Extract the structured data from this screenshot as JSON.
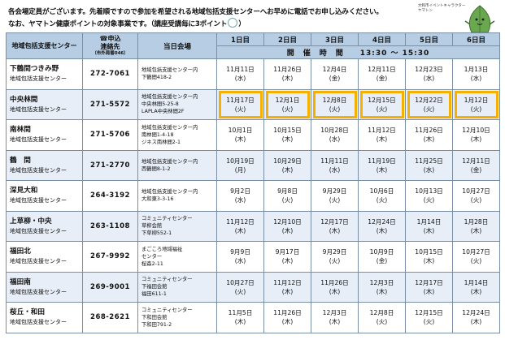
{
  "notice": {
    "line1": "各会場定員がございます。先着順ですので参加を希望される地域包括支援センターへお早めに電話でお申し込みください。",
    "line2": "なお、ヤマトン健康ポイントの対象事業です。（講座受講毎に3ポイント",
    "line2_end": "）"
  },
  "mascot": {
    "caption": "大和市イベントキャラクター ヤマトン"
  },
  "header": {
    "center_col": "地域包括支援センター",
    "contact_line1": "☎申込",
    "contact_line2": "連絡先",
    "contact_note": "（市外局番046）",
    "venue_col": "当日会場",
    "days": [
      "1日目",
      "2日目",
      "3日目",
      "4日目",
      "5日目",
      "6日目"
    ],
    "time_label": "開　催　時　間　　13:30 ～ 15:30"
  },
  "rows": [
    {
      "name": "下鶴間つきみ野",
      "sub": "地域包括支援センター",
      "tel": "272-7061",
      "venue": [
        "地域包括支援センター内",
        "下鶴間418-2"
      ],
      "dates": [
        [
          "11月11日",
          "(水)"
        ],
        [
          "11月26日",
          "(木)"
        ],
        [
          "12月4日",
          "(金)"
        ],
        [
          "12月11日",
          "(金)"
        ],
        [
          "12月23日",
          "(水)"
        ],
        [
          "1月13日",
          "(水)"
        ]
      ]
    },
    {
      "name": "中央林間",
      "sub": "地域包括支援センター",
      "tel": "271-5572",
      "venue": [
        "地域包括支援センター内",
        "中央林間5-25-8",
        "LAPLA中央林間2F"
      ],
      "dates": [
        [
          "11月17日",
          "(火)"
        ],
        [
          "12月1日",
          "(火)"
        ],
        [
          "12月8日",
          "(火)"
        ],
        [
          "12月15日",
          "(火)"
        ],
        [
          "12月22日",
          "(火)"
        ],
        [
          "1月12日",
          "(火)"
        ]
      ]
    },
    {
      "name": "南林間",
      "sub": "地域包括支援センター",
      "tel": "271-5706",
      "venue": [
        "地域包括支援センター内",
        "南林間1-4-18",
        "ジネス南林間2-1"
      ],
      "dates": [
        [
          "10月1日",
          "(木)"
        ],
        [
          "10月15日",
          "(木)"
        ],
        [
          "10月28日",
          "(水)"
        ],
        [
          "11月12日",
          "(木)"
        ],
        [
          "11月26日",
          "(木)"
        ],
        [
          "12月10日",
          "(木)"
        ]
      ]
    },
    {
      "name": "鶴　間",
      "sub": "地域包括支援センター",
      "tel": "271-2770",
      "venue": [
        "地域包括支援センター内",
        "西鶴間8-1-2"
      ],
      "dates": [
        [
          "10月19日",
          "(月)"
        ],
        [
          "10月29日",
          "(木)"
        ],
        [
          "11月11日",
          "(水)"
        ],
        [
          "11月19日",
          "(木)"
        ],
        [
          "11月25日",
          "(水)"
        ],
        [
          "12月11日",
          "(金)"
        ]
      ]
    },
    {
      "name": "深見大和",
      "sub": "地域包括支援センター",
      "tel": "264-3192",
      "venue": [
        "地域包括支援センター内",
        "大和東3-3-16"
      ],
      "dates": [
        [
          "9月2日",
          "(水)"
        ],
        [
          "9月8日",
          "(火)"
        ],
        [
          "9月29日",
          "(火)"
        ],
        [
          "10月6日",
          "(火)"
        ],
        [
          "10月13日",
          "(火)"
        ],
        [
          "10月27日",
          "(火)"
        ]
      ]
    },
    {
      "name": "上草柳・中央",
      "sub": "地域包括支援センター",
      "tel": "263-1108",
      "venue": [
        "コミュニティセンター",
        "草柳会館",
        "下草柳552-1"
      ],
      "dates": [
        [
          "11月12日",
          "(木)"
        ],
        [
          "12月10日",
          "(木)"
        ],
        [
          "12月17日",
          "(木)"
        ],
        [
          "12月24日",
          "(木)"
        ],
        [
          "1月14日",
          "(木)"
        ],
        [
          "1月28日",
          "(木)"
        ]
      ]
    },
    {
      "name": "福田北",
      "sub": "地域包括支援センター",
      "tel": "267-9992",
      "alt": true,
      "venue": [
        "まごころ地域福祉",
        "センター",
        "桜森2-11"
      ],
      "dates": [
        [
          "9月9日",
          "(水)"
        ],
        [
          "9月17日",
          "(木)"
        ],
        [
          "9月29日",
          "(火)"
        ],
        [
          "10月9日",
          "(金)"
        ],
        [
          "10月15日",
          "(木)"
        ],
        [
          "10月27日",
          "(火)"
        ]
      ]
    },
    {
      "name": "福田南",
      "sub": "地域包括支援センター",
      "tel": "269-9001",
      "venue": [
        "コミュニティセンター",
        "下福田会館",
        "福田611-1"
      ],
      "dates": [
        [
          "10月27日",
          "(火)"
        ],
        [
          "11月12日",
          "(木)"
        ],
        [
          "11月26日",
          "(木)"
        ],
        [
          "12月3日",
          "(木)"
        ],
        [
          "12月17日",
          "(木)"
        ],
        [
          "1月14日",
          "(木)"
        ]
      ]
    },
    {
      "name": "桜丘・和田",
      "sub": "地域包括支援センター",
      "tel": "268-2621",
      "venue": [
        "コミュニティセンター",
        "下和田会館",
        "下和田791-2"
      ],
      "dates": [
        [
          "11月5日",
          "(木)"
        ],
        [
          "11月26日",
          "(木)"
        ],
        [
          "12月3日",
          "(木)"
        ],
        [
          "12月8日",
          "(火)"
        ],
        [
          "12月15日",
          "(火)"
        ],
        [
          "12月24日",
          "(木)"
        ]
      ]
    }
  ],
  "colors": {
    "header_bg": "#b7cde3",
    "alt_row_bg": "#e7eef7",
    "highlight": "#f5b000",
    "mascot_green": "#6aa84f"
  }
}
